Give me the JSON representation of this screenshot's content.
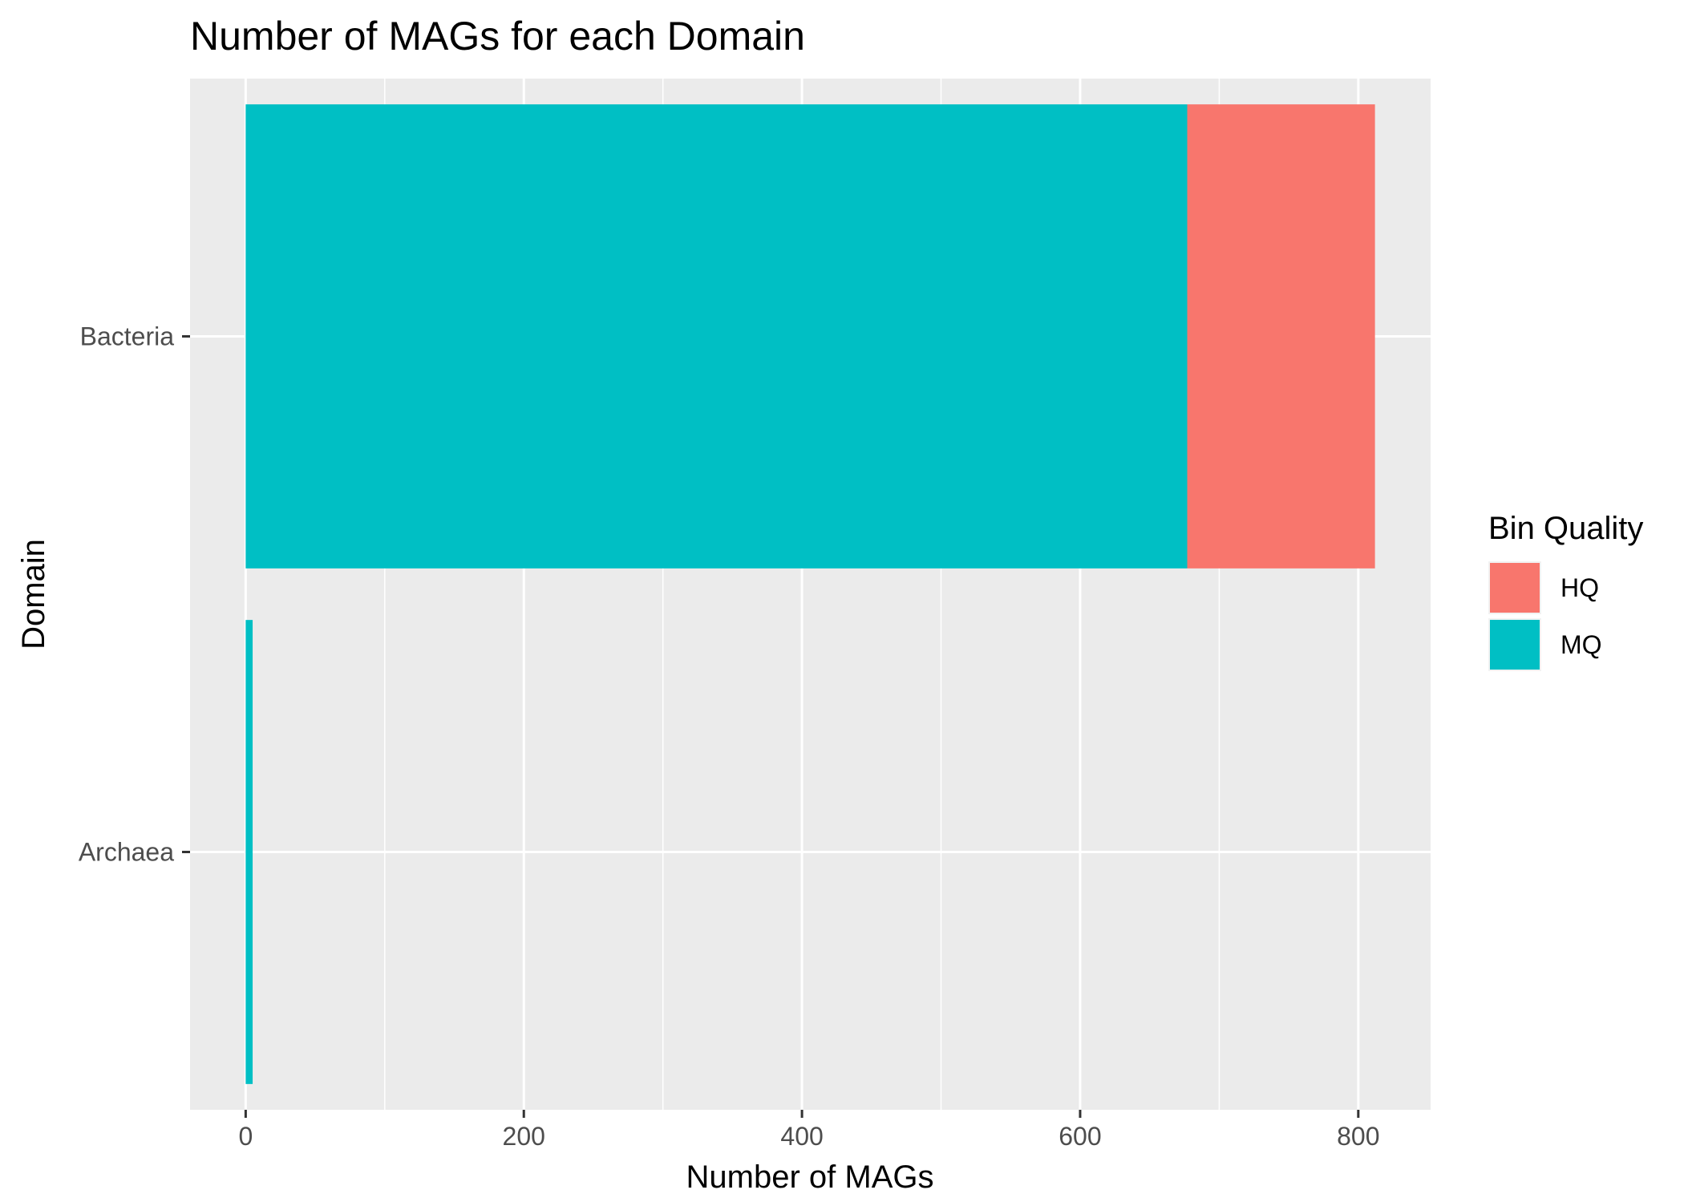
{
  "chart_data": {
    "type": "bar",
    "orientation": "horizontal",
    "stacked": true,
    "title": "Number of MAGs for each Domain",
    "xlabel": "Number of MAGs",
    "ylabel": "Domain",
    "categories": [
      "Archaea",
      "Bacteria"
    ],
    "series": [
      {
        "name": "MQ",
        "values": [
          5,
          677
        ],
        "color": "#00BFC4"
      },
      {
        "name": "HQ",
        "values": [
          0,
          135
        ],
        "color": "#F8766D"
      }
    ],
    "xlim": [
      -40,
      852
    ],
    "xticks": [
      0,
      200,
      400,
      600,
      800
    ],
    "grid": true,
    "legend": {
      "title": "Bin Quality",
      "position": "right",
      "entries": [
        {
          "label": "HQ",
          "color": "#F8766D"
        },
        {
          "label": "MQ",
          "color": "#00BFC4"
        }
      ]
    },
    "panel_background": "#EBEBEB"
  }
}
